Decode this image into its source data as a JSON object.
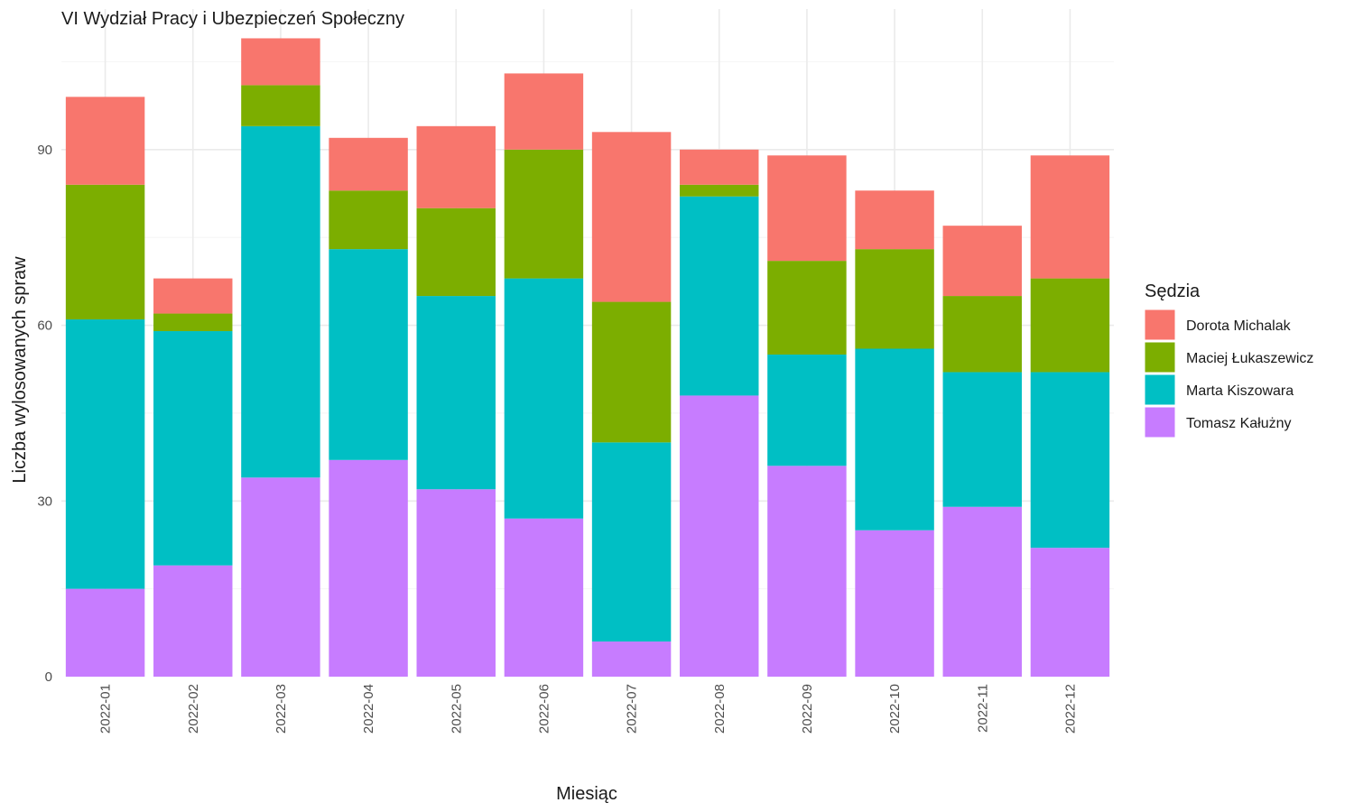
{
  "chart_data": {
    "type": "bar",
    "stacked": true,
    "title": "VI Wydział Pracy i Ubezpieczeń Społeczny",
    "xlabel": "Miesiąc",
    "ylabel": "Liczba wylosowanych spraw",
    "ylim": [
      0,
      114
    ],
    "yticks": [
      0,
      30,
      60,
      90
    ],
    "grid": true,
    "legend_position": "right",
    "legend_title": "Sędzia",
    "categories": [
      "2022-01",
      "2022-02",
      "2022-03",
      "2022-04",
      "2022-05",
      "2022-06",
      "2022-07",
      "2022-08",
      "2022-09",
      "2022-10",
      "2022-11",
      "2022-12"
    ],
    "series": [
      {
        "name": "Tomasz Kałużny",
        "color": "#C77CFF",
        "values": [
          15,
          19,
          34,
          37,
          32,
          27,
          6,
          48,
          36,
          25,
          29,
          22
        ]
      },
      {
        "name": "Marta Kiszowara",
        "color": "#00BFC4",
        "values": [
          46,
          40,
          60,
          36,
          33,
          41,
          34,
          34,
          19,
          31,
          23,
          30
        ]
      },
      {
        "name": "Maciej Łukaszewicz",
        "color": "#7CAE00",
        "values": [
          23,
          3,
          7,
          10,
          15,
          22,
          24,
          2,
          16,
          17,
          13,
          16
        ]
      },
      {
        "name": "Dorota Michalak",
        "color": "#F8766D",
        "values": [
          15,
          6,
          8,
          9,
          14,
          13,
          29,
          6,
          18,
          10,
          12,
          21
        ]
      }
    ],
    "legend_order": [
      "Dorota Michalak",
      "Maciej Łukaszewicz",
      "Marta Kiszowara",
      "Tomasz Kałużny"
    ]
  }
}
